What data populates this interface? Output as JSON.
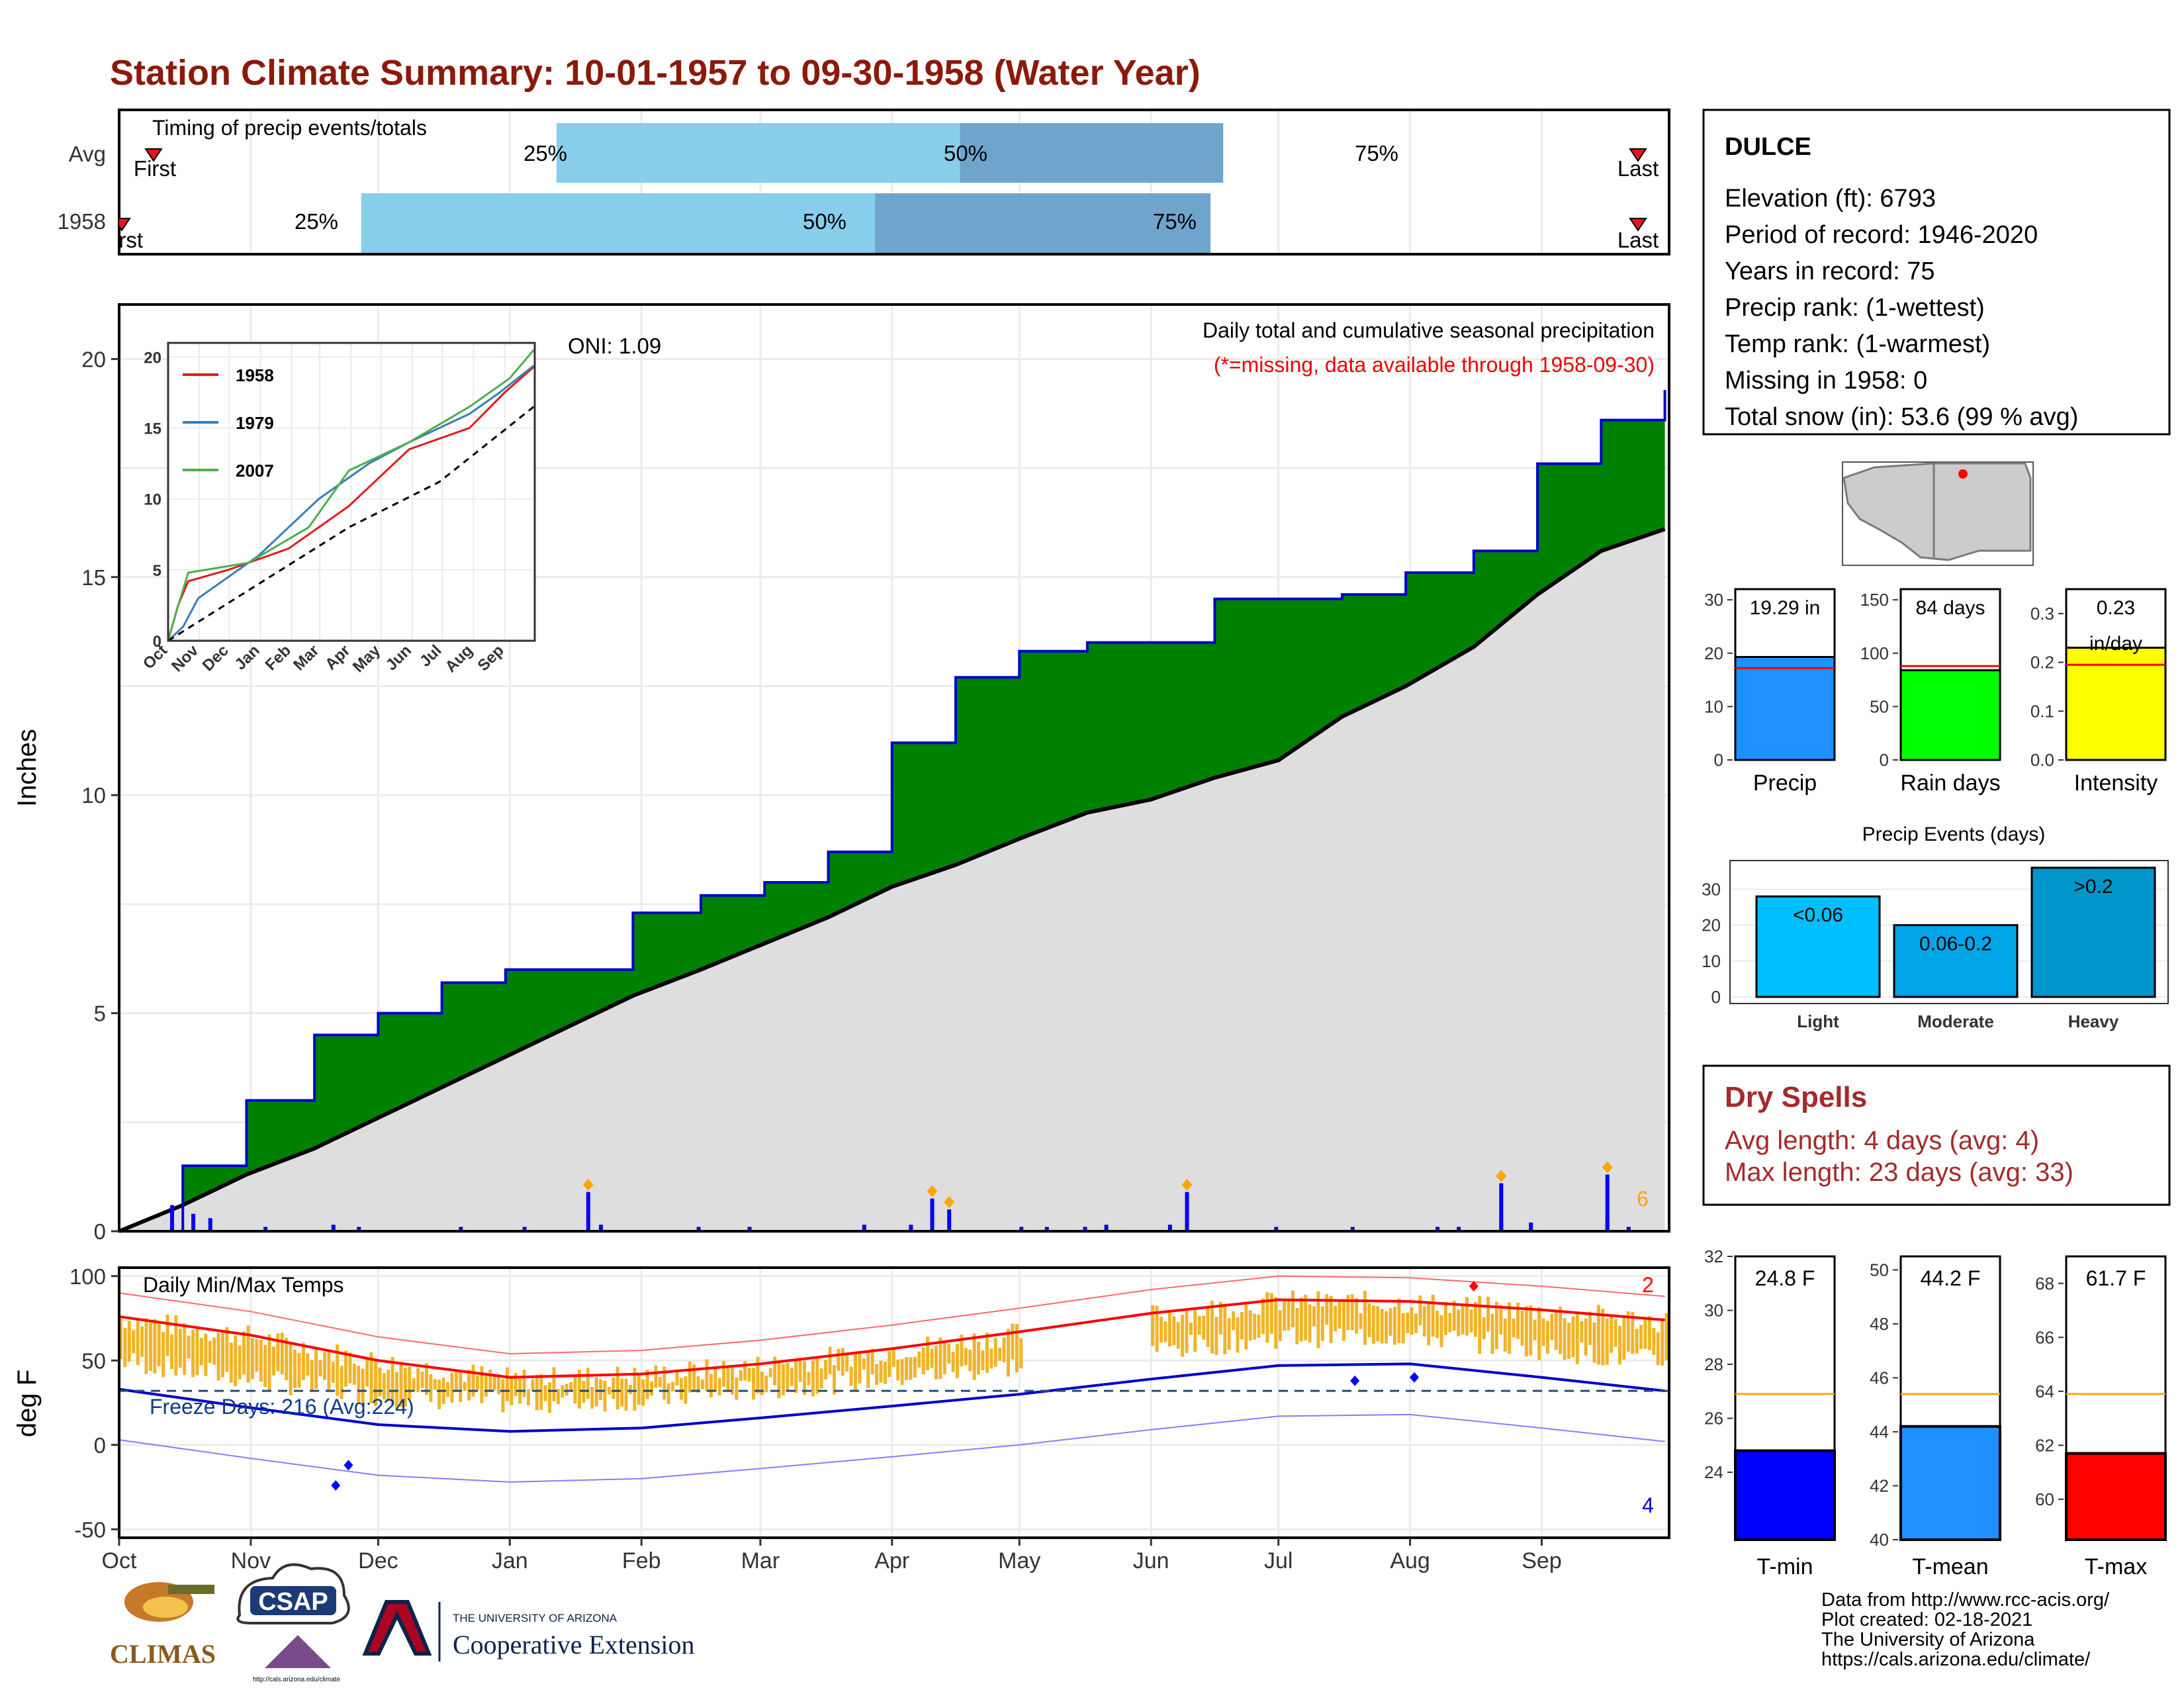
{
  "title": "Station Climate Summary: 10-01-1957 to 09-30-1958 (Water Year)",
  "timing": {
    "title": "Timing of precip events/totals",
    "rows": [
      {
        "label": "Avg",
        "first_label": "First",
        "last_label": "Last",
        "p25": "25%",
        "p50": "50%",
        "p75": "75%"
      },
      {
        "label": "1958",
        "first_label": "First",
        "last_label": "Last",
        "p25": "25%",
        "p50": "50%",
        "p75": "75%"
      }
    ],
    "colors": {
      "light": "#87ceeb",
      "dark": "#6fa5cc",
      "marker": "#e8141a"
    }
  },
  "months": [
    "Oct",
    "Nov",
    "Dec",
    "Jan",
    "Feb",
    "Mar",
    "Apr",
    "May",
    "Jun",
    "Jul",
    "Aug",
    "Sep"
  ],
  "precip_panel": {
    "ylabel": "Inches",
    "yticks": [
      "0",
      "5",
      "10",
      "15",
      "20"
    ],
    "oni": "ONI: 1.09",
    "caption": "Daily total and cumulative seasonal precipitation",
    "caption2": "(*=missing, data available through 1958-09-30)",
    "corner_count": "6",
    "colors": {
      "above": "#008000",
      "normal": "#dedede",
      "line": "#0000cd",
      "daily": "#0000ff",
      "extreme": "#ffa500"
    }
  },
  "inset": {
    "yticks": [
      "0",
      "5",
      "10",
      "15",
      "20"
    ],
    "xticks": [
      "Oct",
      "Nov",
      "Dec",
      "Jan",
      "Feb",
      "Mar",
      "Apr",
      "May",
      "Jun",
      "Jul",
      "Aug",
      "Sep"
    ],
    "legend": [
      {
        "name": "1958",
        "color": "#e41a1c"
      },
      {
        "name": "1979",
        "color": "#377eb8"
      },
      {
        "name": "2007",
        "color": "#4daf4a"
      }
    ]
  },
  "temp_panel": {
    "ylabel": "deg F",
    "yticks": [
      "-50",
      "0",
      "50",
      "100"
    ],
    "title": "Daily Min/Max Temps",
    "freeze": "Freeze Days: 216 (Avg:224)",
    "record_high_count": "2",
    "record_low_count": "4",
    "colors": {
      "bars": "#f0b428",
      "max": "#ff0000",
      "min": "#0000cd"
    }
  },
  "station": {
    "name": "DULCE",
    "lines": [
      "Elevation (ft): 6793",
      "Period of record: 1946-2020",
      "Years in record: 75",
      "Precip rank:  (1-wettest)",
      "Temp rank:  (1-warmest)",
      "Missing in 1958: 0",
      "Total snow (in): 53.6 (99 % avg)"
    ]
  },
  "summary_bars": [
    {
      "label": "Precip",
      "value_text": "19.29 in",
      "value": 19.29,
      "avg": 17.2,
      "ymax": 32,
      "ticks": [
        "0",
        "10",
        "20",
        "30"
      ],
      "color": "#1e90ff"
    },
    {
      "label": "Rain days",
      "value_text": "84 days",
      "value": 84,
      "avg": 88,
      "ymax": 160,
      "ticks": [
        "0",
        "50",
        "100",
        "150"
      ],
      "color": "#00ff00"
    },
    {
      "label": "Intensity",
      "value_text": "0.23 in/day",
      "value": 0.23,
      "avg": 0.195,
      "ymax": 0.35,
      "ticks": [
        "0.0",
        "0.1",
        "0.2",
        "0.3"
      ],
      "color": "#ffff00"
    }
  ],
  "precip_events": {
    "title": "Precip Events (days)",
    "yticks": [
      "0",
      "10",
      "20",
      "30"
    ],
    "bars": [
      {
        "category": "Light",
        "label": "<0.06",
        "value": 28,
        "color": "#00bfff"
      },
      {
        "category": "Moderate",
        "label": "0.06-0.2",
        "value": 20,
        "color": "#00a5e8"
      },
      {
        "category": "Heavy",
        "label": ">0.2",
        "value": 36,
        "color": "#0095c8"
      }
    ]
  },
  "dry_spells": {
    "title": "Dry Spells",
    "avg": "Avg length: 4 days (avg: 4)",
    "max": "Max length: 23 days (avg: 33)"
  },
  "temp_bars": [
    {
      "label": "T-min",
      "value_text": "24.8 F",
      "value": 24.8,
      "avg": 26.9,
      "min": 21.5,
      "max": 32,
      "ticks": [
        "24",
        "26",
        "28",
        "30",
        "32"
      ],
      "color": "#0000ff"
    },
    {
      "label": "T-mean",
      "value_text": "44.2 F",
      "value": 44.2,
      "avg": 45.4,
      "min": 40,
      "max": 50.5,
      "ticks": [
        "40",
        "42",
        "44",
        "46",
        "48",
        "50"
      ],
      "color": "#1e90ff"
    },
    {
      "label": "T-max",
      "value_text": "61.7 F",
      "value": 61.7,
      "avg": 63.9,
      "min": 58.5,
      "max": 69,
      "ticks": [
        "60",
        "62",
        "64",
        "66",
        "68"
      ],
      "color": "#ff0000"
    }
  ],
  "footer": {
    "lines": [
      "Data from http://www.rcc-acis.org/",
      "Plot created: 02-18-2021",
      "The University of Arizona",
      "https://cals.arizona.edu/climate/"
    ],
    "logos": {
      "climas": "CLIMAS",
      "csap": "CSAP",
      "ua_small": "THE UNIVERSITY OF ARIZONA",
      "ua_big": "Cooperative Extension",
      "csap_url": "http://cals.arizona.edu/climate"
    }
  },
  "chart_data": [
    {
      "type": "bar",
      "title": "Timing of precip events/totals",
      "categories": [
        "Avg",
        "1958"
      ],
      "series": [
        {
          "name": "25%",
          "values": [
            "Jan 12",
            "Nov 27"
          ]
        },
        {
          "name": "50%",
          "values": [
            "Apr 17",
            "Mar 28"
          ]
        },
        {
          "name": "75%",
          "values": [
            "Jul 26",
            "Jun 14"
          ]
        }
      ]
    },
    {
      "type": "area",
      "title": "Daily total and cumulative seasonal precipitation",
      "ylabel": "Inches",
      "ylim": [
        0,
        21
      ],
      "x": [
        "Oct 1",
        "Oct 15",
        "Nov 1",
        "Nov 15",
        "Dec 1",
        "Dec 15",
        "Jan 1",
        "Jan 15",
        "Feb 1",
        "Feb 15",
        "Mar 1",
        "Mar 15",
        "Apr 1",
        "Apr 15",
        "May 1",
        "May 15",
        "Jun 1",
        "Jun 15",
        "Jul 1",
        "Jul 15",
        "Aug 1",
        "Aug 15",
        "Sep 1",
        "Sep 15",
        "Sep 30"
      ],
      "series": [
        {
          "name": "1958",
          "values": [
            0,
            1.5,
            3.0,
            4.5,
            5.0,
            5.7,
            6.0,
            6.0,
            7.3,
            7.7,
            8.0,
            8.7,
            11.2,
            12.7,
            13.3,
            13.5,
            13.5,
            14.5,
            14.5,
            14.6,
            15.1,
            15.6,
            17.6,
            18.6,
            19.29
          ]
        },
        {
          "name": "Avg",
          "values": [
            0,
            0.6,
            1.3,
            1.9,
            2.6,
            3.3,
            4.0,
            4.7,
            5.4,
            6.0,
            6.6,
            7.2,
            7.9,
            8.4,
            9.0,
            9.6,
            9.9,
            10.4,
            10.8,
            11.8,
            12.5,
            13.4,
            14.6,
            15.6,
            16.1
          ]
        }
      ]
    },
    {
      "type": "line",
      "title": "Daily Min/Max Temps",
      "ylabel": "deg F",
      "ylim": [
        -55,
        105
      ],
      "x": [
        "Oct 1",
        "Nov 1",
        "Dec 1",
        "Jan 1",
        "Feb 1",
        "Mar 1",
        "Apr 1",
        "May 1",
        "Jun 1",
        "Jul 1",
        "Aug 1",
        "Sep 1",
        "Sep 30"
      ],
      "series": [
        {
          "name": "Avg max",
          "values": [
            76,
            65,
            50,
            40,
            42,
            48,
            57,
            67,
            78,
            86,
            85,
            80,
            74
          ]
        },
        {
          "name": "Avg min",
          "values": [
            33,
            22,
            12,
            8,
            10,
            16,
            23,
            30,
            39,
            47,
            48,
            40,
            32
          ]
        }
      ]
    },
    {
      "type": "bar",
      "title": "Precip Events (days)",
      "categories": [
        "Light",
        "Moderate",
        "Heavy"
      ],
      "values": [
        28,
        20,
        36
      ]
    }
  ]
}
